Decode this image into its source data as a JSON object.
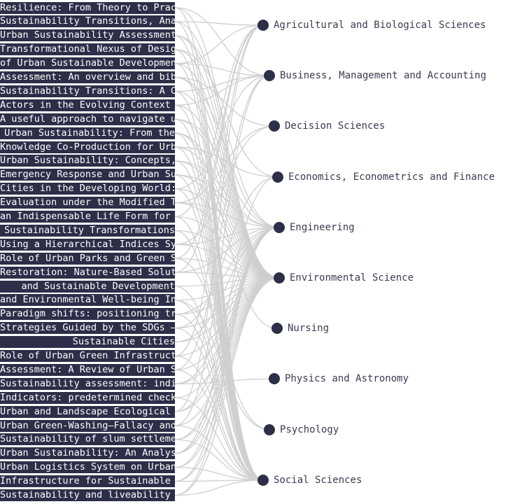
{
  "papers": [
    "Resilience: From Theory to Practi",
    "Sustainability Transitions, Analysing",
    "Urban Sustainability Assessment Lit",
    "Transformational Nexus of Design",
    "of Urban Sustainable Developmen",
    "Assessment: An overview and bibliomet",
    "Sustainability Transitions: A Co",
    "Actors in the Evolving Context of",
    "A useful approach to navigate urban",
    "Urban Sustainability: From the",
    "Knowledge Co-Production for Urban Sustai",
    "Urban Sustainability: Concepts, Dimen",
    "Emergency Response and Urban Sustai",
    "Cities in the Developing World: Beyon",
    "Evaluation under the Modified TOPSIS",
    "an Indispensable Life Form for Urba",
    "Sustainability Transformations",
    "Using a Hierarchical Indices System",
    "Role of Urban Parks and Green Spaces",
    "Restoration: Nature-Based Solutions fo",
    "and Sustainable Development",
    "and Environmental Well-being Indic",
    "Paradigm shifts: positioning transit",
    "Strategies Guided by the SDGs —A Tale",
    "Sustainable Cities",
    "Role of Urban Green Infrastructure",
    "Assessment: A Review of Urban Sustainab",
    "Sustainability assessment: indicators propo",
    "Indicators: predetermined checklists o",
    "Urban and Landscape Ecological Secur",
    "Urban Green-Washing—Fallacy and Real",
    "Sustainability of slum settlements in Bang",
    "Urban Sustainability: An Analysis of Effic",
    "Urban Logistics System on Urban Sustai",
    "Infrastructure for Sustainable Land Use",
    "Sustainability and liveability performance"
  ],
  "categories": [
    "Agricultural and Biological Sciences",
    "Business, Management and Accounting",
    "Decision Sciences",
    "Economics, Econometrics and Finance",
    "Engineering",
    "Environmental Science",
    "Nursing",
    "Physics and Astronomy",
    "Psychology",
    "Social Sciences"
  ],
  "links": [
    [
      0,
      5
    ],
    [
      0,
      9
    ],
    [
      0,
      1
    ],
    [
      1,
      5
    ],
    [
      1,
      9
    ],
    [
      1,
      0
    ],
    [
      2,
      5
    ],
    [
      2,
      4
    ],
    [
      2,
      9
    ],
    [
      3,
      5
    ],
    [
      3,
      9
    ],
    [
      3,
      3
    ],
    [
      4,
      5
    ],
    [
      4,
      9
    ],
    [
      4,
      0
    ],
    [
      4,
      1
    ],
    [
      5,
      5
    ],
    [
      5,
      4
    ],
    [
      5,
      2
    ],
    [
      6,
      5
    ],
    [
      6,
      9
    ],
    [
      6,
      1
    ],
    [
      7,
      9
    ],
    [
      7,
      1
    ],
    [
      7,
      5
    ],
    [
      8,
      5
    ],
    [
      8,
      4
    ],
    [
      8,
      9
    ],
    [
      9,
      5
    ],
    [
      9,
      9
    ],
    [
      9,
      6
    ],
    [
      10,
      5
    ],
    [
      10,
      9
    ],
    [
      10,
      3
    ],
    [
      11,
      5
    ],
    [
      11,
      4
    ],
    [
      11,
      9
    ],
    [
      12,
      4
    ],
    [
      12,
      5
    ],
    [
      12,
      9
    ],
    [
      13,
      9
    ],
    [
      13,
      5
    ],
    [
      13,
      1
    ],
    [
      14,
      2
    ],
    [
      14,
      4
    ],
    [
      14,
      5
    ],
    [
      15,
      5
    ],
    [
      15,
      0
    ],
    [
      15,
      9
    ],
    [
      16,
      9
    ],
    [
      16,
      5
    ],
    [
      17,
      4
    ],
    [
      17,
      5
    ],
    [
      17,
      2
    ],
    [
      18,
      5
    ],
    [
      18,
      0
    ],
    [
      18,
      8
    ],
    [
      19,
      5
    ],
    [
      19,
      0
    ],
    [
      19,
      4
    ],
    [
      20,
      5
    ],
    [
      20,
      9
    ],
    [
      21,
      5
    ],
    [
      21,
      8
    ],
    [
      21,
      9
    ],
    [
      22,
      4
    ],
    [
      22,
      9
    ],
    [
      22,
      5
    ],
    [
      23,
      5
    ],
    [
      23,
      9
    ],
    [
      23,
      3
    ],
    [
      24,
      5
    ],
    [
      24,
      4
    ],
    [
      25,
      5
    ],
    [
      25,
      9
    ],
    [
      25,
      0
    ],
    [
      26,
      5
    ],
    [
      26,
      9
    ],
    [
      26,
      1
    ],
    [
      27,
      5
    ],
    [
      27,
      4
    ],
    [
      27,
      7
    ],
    [
      28,
      5
    ],
    [
      28,
      9
    ],
    [
      29,
      5
    ],
    [
      29,
      0
    ],
    [
      29,
      4
    ],
    [
      30,
      5
    ],
    [
      30,
      9
    ],
    [
      30,
      1
    ],
    [
      31,
      9
    ],
    [
      31,
      5
    ],
    [
      31,
      4
    ],
    [
      32,
      5
    ],
    [
      32,
      3
    ],
    [
      32,
      4
    ],
    [
      33,
      4
    ],
    [
      33,
      5
    ],
    [
      33,
      9
    ],
    [
      34,
      5
    ],
    [
      34,
      4
    ],
    [
      34,
      9
    ],
    [
      35,
      5
    ],
    [
      35,
      9
    ],
    [
      35,
      4
    ]
  ],
  "colors": {
    "node": "#2d2e48",
    "label_background": "#2d2e48",
    "label_text": "#ffffff",
    "link": "#cfcfcf",
    "category_text": "#3a3b52"
  }
}
